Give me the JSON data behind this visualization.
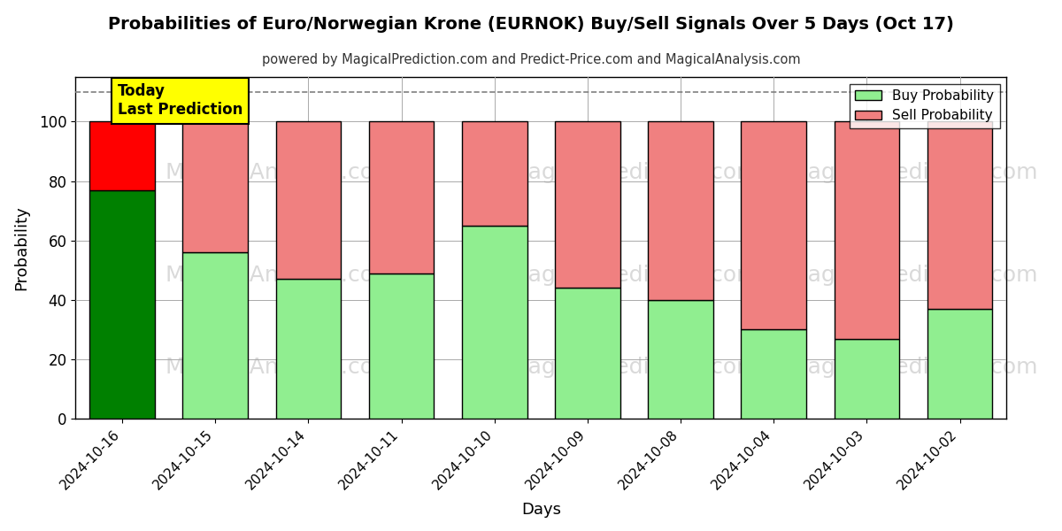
{
  "title": "Probabilities of Euro/Norwegian Krone (EURNOK) Buy/Sell Signals Over 5 Days (Oct 17)",
  "subtitle": "powered by MagicalPrediction.com and Predict-Price.com and MagicalAnalysis.com",
  "xlabel": "Days",
  "ylabel": "Probability",
  "categories": [
    "2024-10-16",
    "2024-10-15",
    "2024-10-14",
    "2024-10-11",
    "2024-10-10",
    "2024-10-09",
    "2024-10-08",
    "2024-10-04",
    "2024-10-03",
    "2024-10-02"
  ],
  "buy_values": [
    77,
    56,
    47,
    49,
    65,
    44,
    40,
    30,
    27,
    37
  ],
  "sell_values": [
    23,
    44,
    53,
    51,
    35,
    56,
    60,
    70,
    73,
    63
  ],
  "today_buy_color": "#008000",
  "today_sell_color": "#ff0000",
  "buy_color": "#90EE90",
  "sell_color": "#F08080",
  "today_label_bg": "#ffff00",
  "today_label_text": "Today\nLast Prediction",
  "legend_buy": "Buy Probability",
  "legend_sell": "Sell Probability",
  "ylim": [
    0,
    115
  ],
  "yticks": [
    0,
    20,
    40,
    60,
    80,
    100
  ],
  "dashed_line_y": 110,
  "watermark_color": "#bbbbbb",
  "grid_color": "#aaaaaa",
  "background_color": "#ffffff",
  "bar_edge_color": "#000000",
  "bar_width": 0.7
}
